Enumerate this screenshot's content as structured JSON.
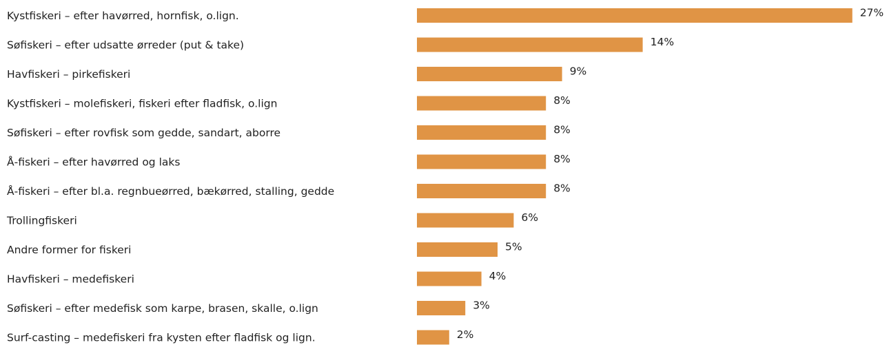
{
  "chart_data": {
    "type": "bar",
    "orientation": "horizontal",
    "categories": [
      "Kystfiskeri – efter havørred, hornfisk, o.lign.",
      "Søfiskeri – efter udsatte ørreder (put & take)",
      "Havfiskeri – pirkefiskeri",
      "Kystfiskeri – molefiskeri, fiskeri efter fladfisk, o.lign",
      "Søfiskeri – efter rovfisk som gedde, sandart, aborre",
      "Å-fiskeri – efter havørred og laks",
      "Å-fiskeri – efter bl.a.  regnbueørred, bækørred, stalling, gedde",
      "Trollingfiskeri",
      "Andre former for fiskeri",
      "Havfiskeri – medefiskeri",
      "Søfiskeri – efter medefisk som karpe, brasen, skalle, o.lign",
      "Surf-casting – medefiskeri fra kysten efter fladfisk og lign."
    ],
    "values": [
      27,
      14,
      9,
      8,
      8,
      8,
      8,
      6,
      5,
      4,
      3,
      2
    ],
    "value_labels": [
      "27%",
      "14%",
      "9%",
      "8%",
      "8%",
      "8%",
      "8%",
      "6%",
      "5%",
      "4%",
      "3%",
      "2%"
    ],
    "unit": "%",
    "bar_color": "#E09445",
    "grid": false,
    "legend": "none"
  }
}
